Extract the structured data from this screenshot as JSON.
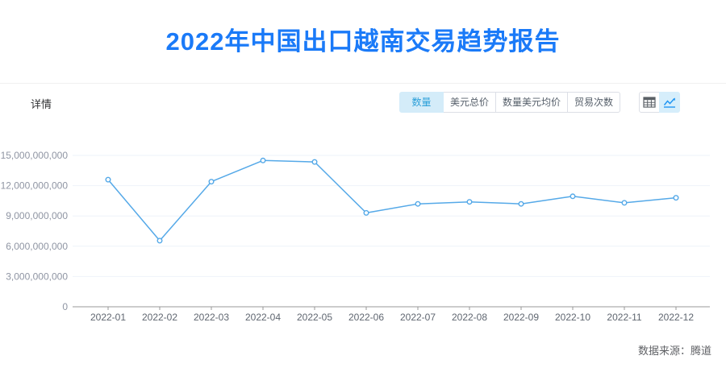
{
  "header": {
    "title": "2022年中国出口越南交易趋势报告",
    "title_color": "#1a7af8"
  },
  "toolbar": {
    "details_label": "详情",
    "metric_tabs": [
      {
        "label": "数量",
        "active": true
      },
      {
        "label": "美元总价",
        "active": false
      },
      {
        "label": "数量美元均价",
        "active": false
      },
      {
        "label": "贸易次数",
        "active": false
      }
    ],
    "view_toggles": [
      {
        "icon": "table-icon",
        "active": false
      },
      {
        "icon": "line-chart-icon",
        "active": true
      }
    ],
    "active_bg": "#d4ecf9",
    "active_text": "#2b9fd9"
  },
  "chart_data": {
    "type": "line",
    "title": "",
    "xlabel": "",
    "ylabel": "",
    "categories": [
      "2022-01",
      "2022-02",
      "2022-03",
      "2022-04",
      "2022-05",
      "2022-06",
      "2022-07",
      "2022-08",
      "2022-09",
      "2022-10",
      "2022-11",
      "2022-12"
    ],
    "series": [
      {
        "name": "数量",
        "values": [
          12600000000,
          6550000000,
          12400000000,
          14500000000,
          14350000000,
          9300000000,
          10200000000,
          10400000000,
          10200000000,
          10950000000,
          10300000000,
          10800000000
        ]
      }
    ],
    "ylim": [
      0,
      15000000000
    ],
    "y_ticks": [
      0,
      3000000000,
      6000000000,
      9000000000,
      12000000000,
      15000000000
    ],
    "grid": true,
    "legend_position": "none",
    "line_color": "#55a9e8",
    "marker": "hollow-circle",
    "grid_color": "#eef3f9",
    "axis_color": "#999999"
  },
  "footer": {
    "source": "数据来源：腾道"
  }
}
